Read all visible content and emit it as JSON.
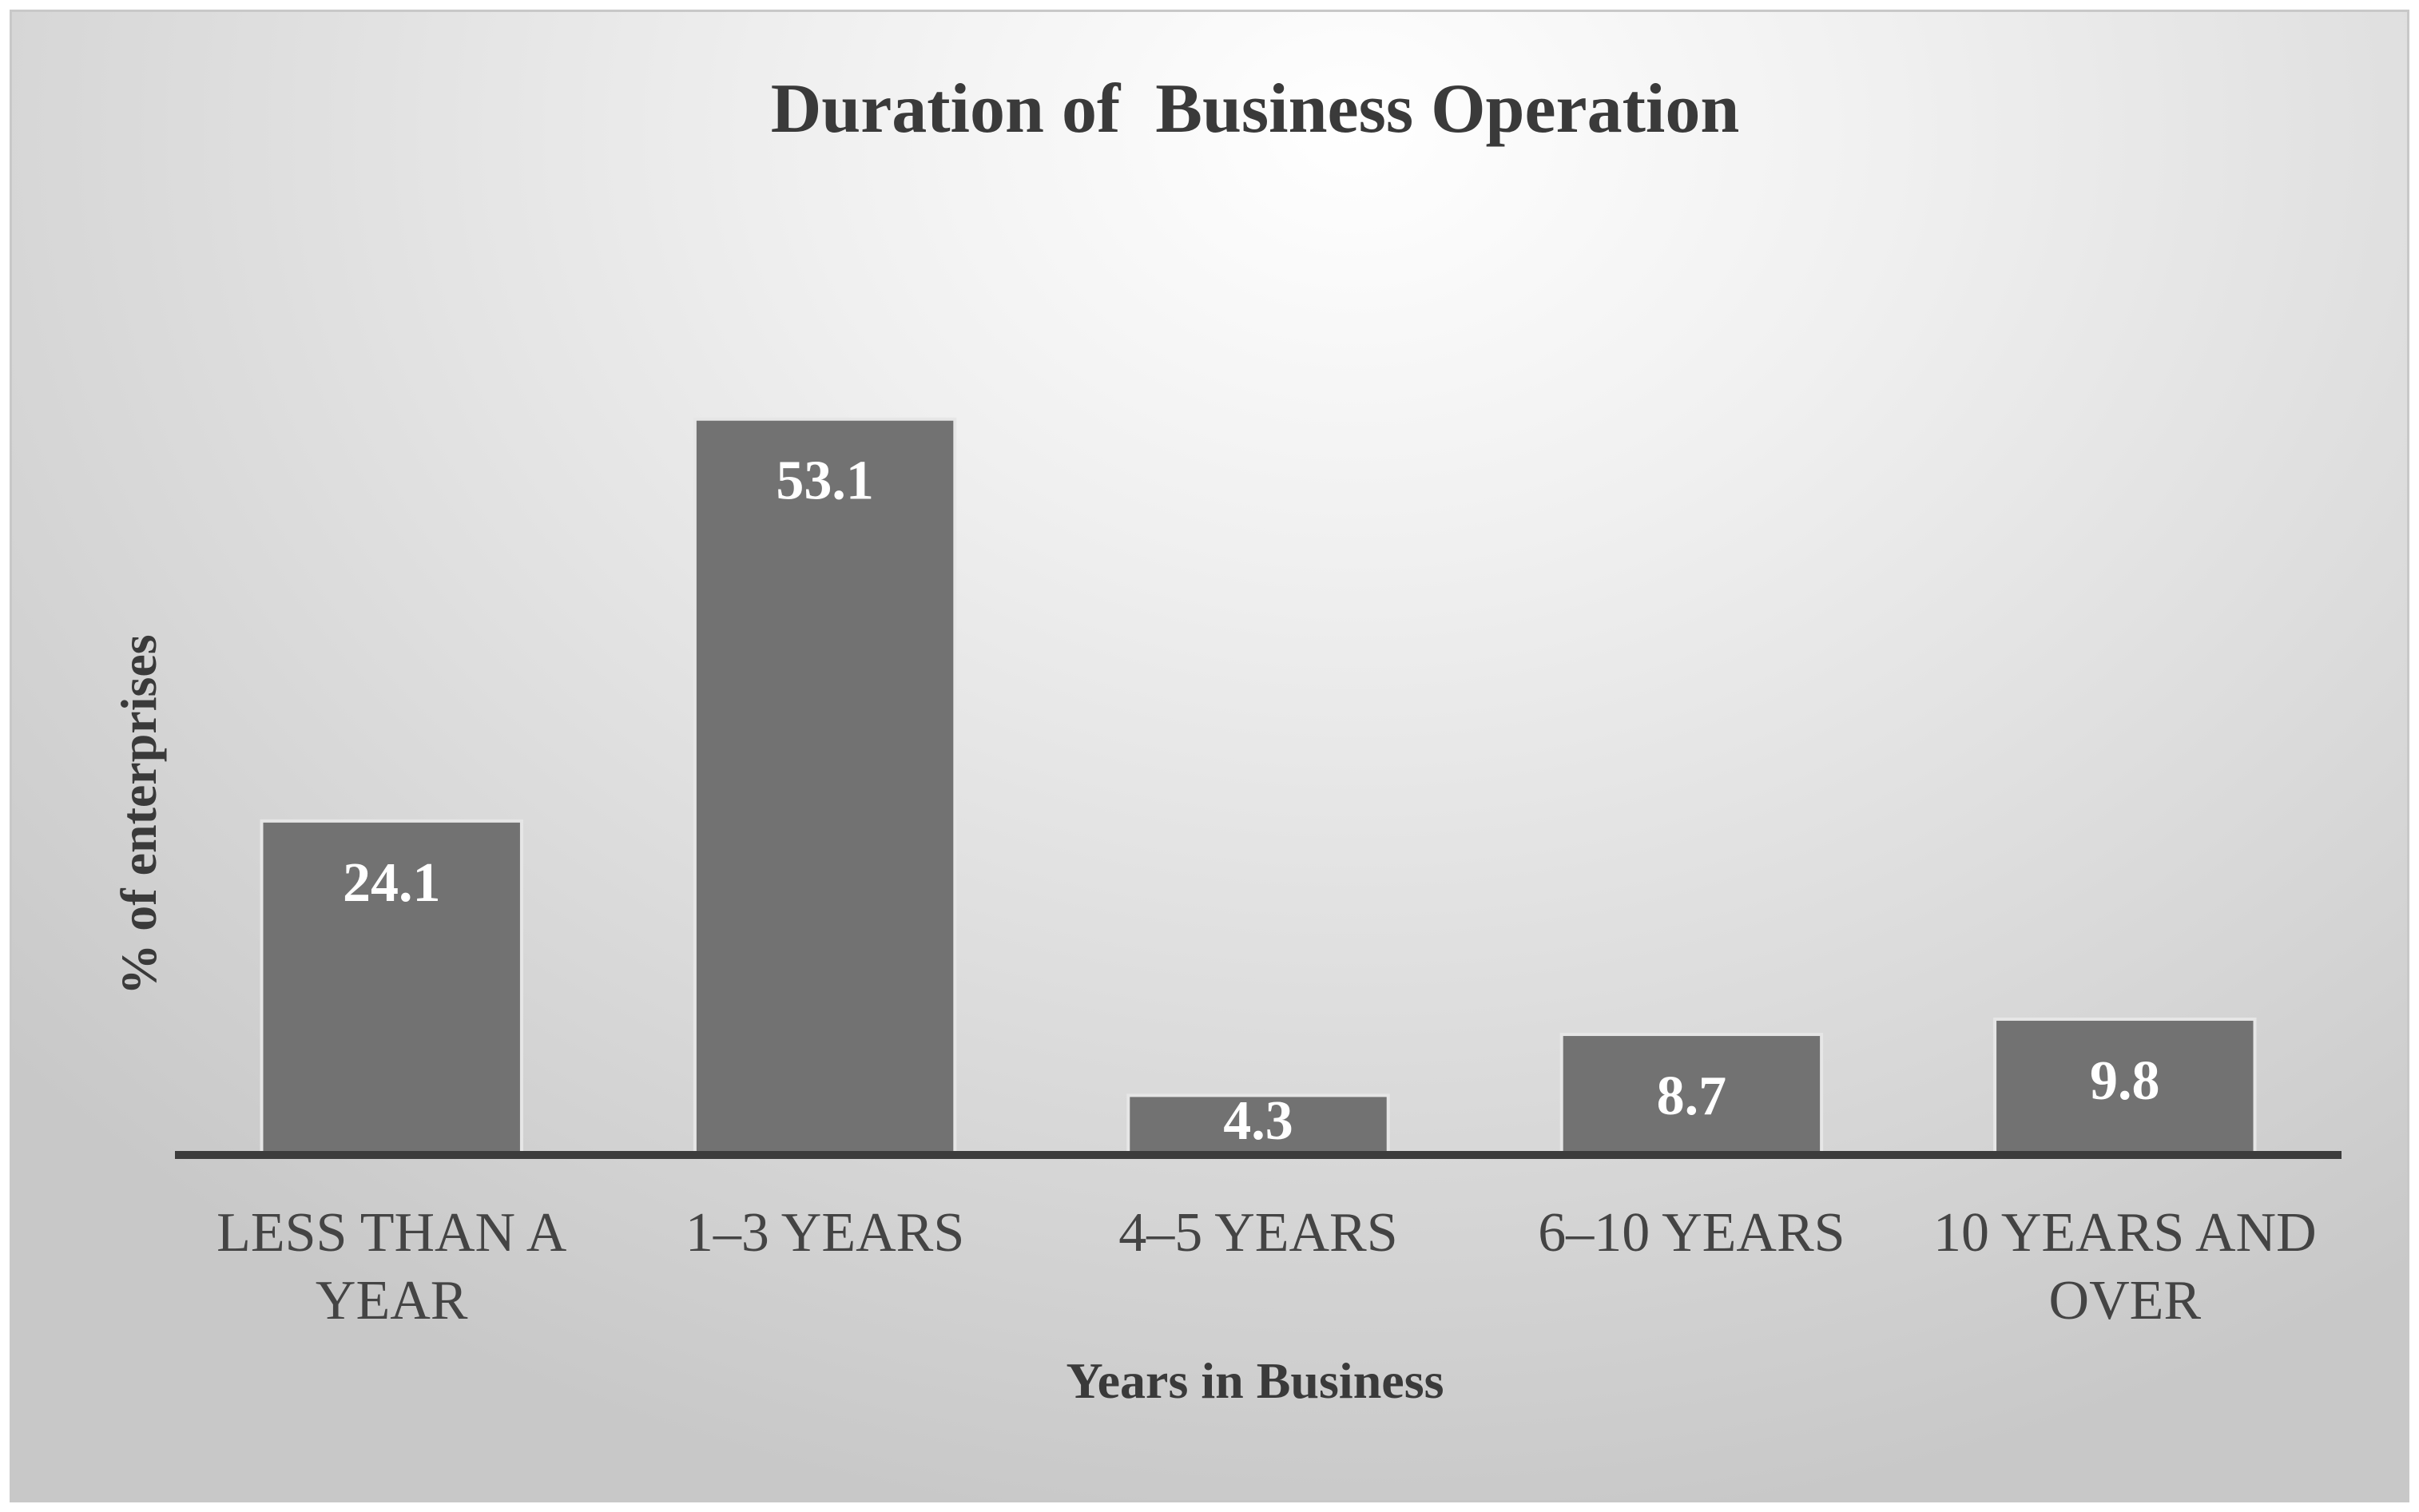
{
  "chart_data": {
    "type": "bar",
    "title": "Duration of  Business Operation",
    "xlabel": "Years in Business",
    "ylabel": "% of enterprises",
    "categories": [
      [
        "LESS THAN A",
        "YEAR"
      ],
      [
        "1–3 YEARS"
      ],
      [
        "4–5 YEARS"
      ],
      [
        "6–10 YEARS"
      ],
      [
        "10 YEARS AND",
        "OVER"
      ]
    ],
    "values": [
      24.1,
      53.1,
      4.3,
      8.7,
      9.8
    ],
    "data_labels": [
      "24.1",
      "53.1",
      "4.3",
      "8.7",
      "9.8"
    ],
    "ylim": [
      0,
      60
    ],
    "grid": false,
    "legend": "none",
    "colors": {
      "bar": "#727272",
      "bar_edge": "#e6e6e6",
      "axis_line": "#3c3c3c",
      "data_label": "#ffffff"
    }
  }
}
